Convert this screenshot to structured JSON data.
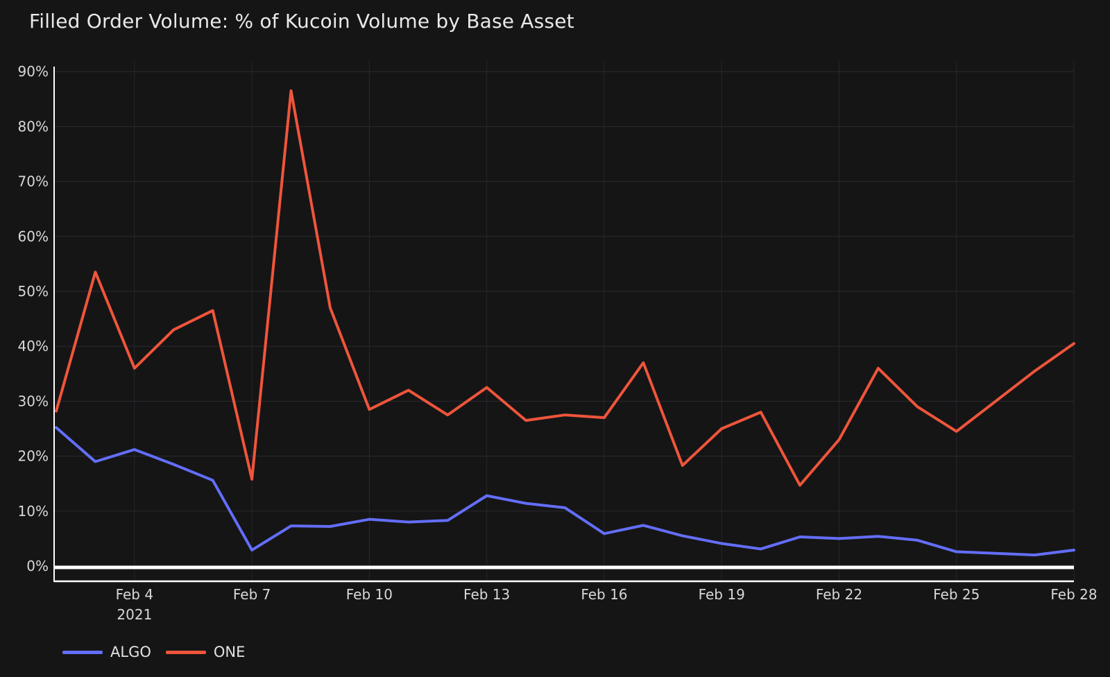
{
  "colors": {
    "background": "#151515",
    "grid_horizontal": "#2b2b33",
    "grid_vertical": "#26262e",
    "axis_line": "#ffffff",
    "tick_text": "#d8d8d8",
    "title_text": "#e9e9e9",
    "algo_line": "#636efa",
    "one_line": "#ef553b"
  },
  "chart_data": {
    "type": "line",
    "title": "Filled Order Volume: % of Kucoin Volume by Base Asset",
    "xlabel": "",
    "ylabel": "",
    "ylim": [
      0,
      90
    ],
    "grid": true,
    "legend_position": "bottom-left",
    "x": [
      "Feb 2",
      "Feb 3",
      "Feb 4",
      "Feb 5",
      "Feb 6",
      "Feb 7",
      "Feb 8",
      "Feb 9",
      "Feb 10",
      "Feb 11",
      "Feb 12",
      "Feb 13",
      "Feb 14",
      "Feb 15",
      "Feb 16",
      "Feb 17",
      "Feb 18",
      "Feb 19",
      "Feb 20",
      "Feb 21",
      "Feb 22",
      "Feb 23",
      "Feb 24",
      "Feb 25",
      "Feb 26",
      "Feb 27",
      "Feb 28"
    ],
    "year_note": "2021",
    "y_ticks": [
      "0%",
      "10%",
      "20%",
      "30%",
      "40%",
      "50%",
      "60%",
      "70%",
      "80%",
      "90%"
    ],
    "x_ticks": [
      {
        "index": 2,
        "label": "Feb 4",
        "sub": "2021"
      },
      {
        "index": 5,
        "label": "Feb 7"
      },
      {
        "index": 8,
        "label": "Feb 10"
      },
      {
        "index": 11,
        "label": "Feb 13"
      },
      {
        "index": 14,
        "label": "Feb 16"
      },
      {
        "index": 17,
        "label": "Feb 19"
      },
      {
        "index": 20,
        "label": "Feb 22"
      },
      {
        "index": 23,
        "label": "Feb 25"
      },
      {
        "index": 26,
        "label": "Feb 28"
      }
    ],
    "series": [
      {
        "name": "ALGO",
        "color": "#636efa",
        "values": [
          25.2,
          19.0,
          21.2,
          18.5,
          15.6,
          2.9,
          7.3,
          7.2,
          8.5,
          8.0,
          8.3,
          12.8,
          11.4,
          10.6,
          5.9,
          7.4,
          5.5,
          4.1,
          3.1,
          5.3,
          5.0,
          5.4,
          4.7,
          2.6,
          2.3,
          2.0,
          2.9
        ]
      },
      {
        "name": "ONE",
        "color": "#ef553b",
        "values": [
          28.2,
          53.5,
          36.0,
          43.0,
          46.5,
          15.8,
          86.5,
          47.0,
          28.5,
          32.0,
          27.5,
          32.5,
          26.5,
          27.5,
          27.0,
          37.0,
          18.3,
          25.0,
          28.0,
          14.7,
          23.0,
          36.0,
          29.0,
          24.5,
          30.0,
          35.5,
          40.5
        ]
      }
    ]
  }
}
